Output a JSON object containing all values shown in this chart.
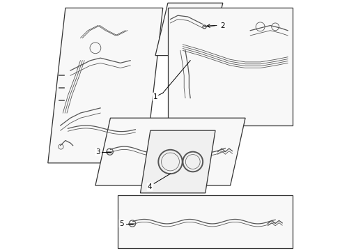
{
  "bg_color": "#ffffff",
  "line_color": "#000000",
  "part_color": "#555555",
  "panel_edge_color": "#333333",
  "figsize": [
    4.89,
    3.6
  ],
  "dpi": 100
}
